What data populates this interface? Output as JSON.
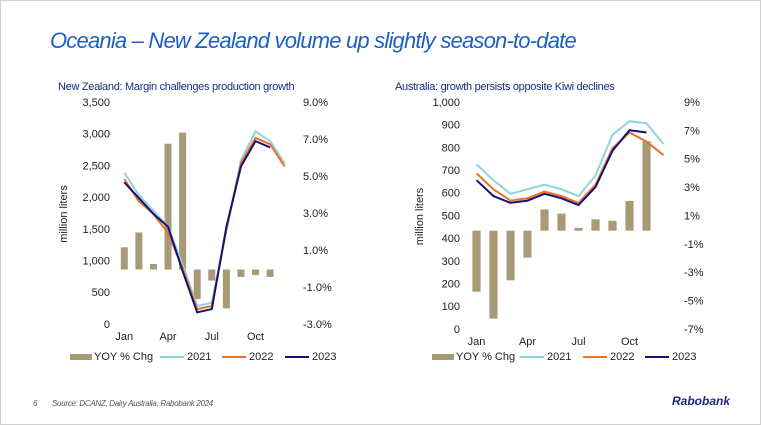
{
  "slide": {
    "title": "Oceania – New Zealand volume up slightly season-to-date",
    "page_number": "6",
    "source": "Source: DCANZ, Dairy Australia, Rabobank 2024",
    "logo": "Rabobank"
  },
  "chart_data": [
    {
      "type": "bar_line",
      "title": "New Zealand: Margin challenges production growth",
      "y_label": "million liters",
      "categories": [
        "Jan",
        null,
        null,
        "Apr",
        null,
        null,
        "Jul",
        null,
        null,
        "Oct",
        null,
        null
      ],
      "ylim": [
        0,
        3500
      ],
      "yticks": [
        0,
        500,
        {
          "value": 1000,
          "label": "1,000"
        },
        {
          "value": 1500,
          "label": "1,500"
        },
        {
          "value": 2000,
          "label": "2,000"
        },
        {
          "value": 2500,
          "label": "2,500"
        },
        {
          "value": 3000,
          "label": "3,000"
        },
        {
          "value": 3500,
          "label": "3,500"
        }
      ],
      "y2lim": [
        -3,
        9
      ],
      "y2ticks": [
        {
          "value": -3,
          "label": "-3.0%"
        },
        {
          "value": -1,
          "label": "-1.0%"
        },
        {
          "value": 1,
          "label": "1.0%"
        },
        {
          "value": 3,
          "label": "3.0%"
        },
        {
          "value": 5,
          "label": "5.0%"
        },
        {
          "value": 7,
          "label": "7.0%"
        },
        {
          "value": 9,
          "label": "9.0%"
        }
      ],
      "series": [
        {
          "name": "YOY % Chg",
          "kind": "bar",
          "axis": "y2",
          "color": "#a89a76",
          "values": [
            1.2,
            2.0,
            0.3,
            6.8,
            7.4,
            -1.6,
            -0.6,
            -2.1,
            -0.4,
            -0.3,
            -0.4,
            null
          ]
        },
        {
          "name": "2021",
          "kind": "line",
          "color": "#8fd3e0",
          "values": [
            2400,
            2050,
            1800,
            1550,
            950,
            300,
            350,
            1500,
            2600,
            3050,
            2900,
            2550
          ]
        },
        {
          "name": "2022",
          "kind": "line",
          "color": "#f07020",
          "values": [
            2300,
            1950,
            1750,
            1450,
            900,
            250,
            300,
            1500,
            2550,
            2950,
            2850,
            2500
          ]
        },
        {
          "name": "2023",
          "kind": "line",
          "color": "#10147a",
          "values": [
            2250,
            2000,
            1750,
            1550,
            850,
            200,
            250,
            1550,
            2500,
            2900,
            2800,
            null
          ]
        }
      ]
    },
    {
      "type": "bar_line",
      "title": "Australia: growth persists opposite Kiwi declines",
      "y_label": "million liters",
      "categories": [
        "Jan",
        null,
        null,
        "Apr",
        null,
        null,
        "Jul",
        null,
        null,
        "Oct",
        null,
        null
      ],
      "ylim": [
        0,
        1000
      ],
      "yticks": [
        0,
        100,
        200,
        300,
        400,
        500,
        600,
        700,
        800,
        900,
        {
          "value": 1000,
          "label": "1,000"
        }
      ],
      "y2lim": [
        -7,
        9
      ],
      "y2ticks": [
        {
          "value": -7,
          "label": "-7%"
        },
        {
          "value": -5,
          "label": "-5%"
        },
        {
          "value": -3,
          "label": "-3%"
        },
        {
          "value": -1,
          "label": "-1%"
        },
        {
          "value": 1,
          "label": "1%"
        },
        {
          "value": 3,
          "label": "3%"
        },
        {
          "value": 5,
          "label": "5%"
        },
        {
          "value": 7,
          "label": "7%"
        },
        {
          "value": 9,
          "label": "9%"
        }
      ],
      "series": [
        {
          "name": "YOY % Chg",
          "kind": "bar",
          "axis": "y2",
          "color": "#a89a76",
          "values": [
            -4.3,
            -6.2,
            -3.5,
            -1.9,
            1.5,
            1.2,
            0.2,
            0.8,
            0.7,
            2.1,
            6.3,
            null
          ]
        },
        {
          "name": "2021",
          "kind": "line",
          "color": "#8fd3e0",
          "values": [
            730,
            660,
            600,
            620,
            640,
            620,
            590,
            680,
            860,
            920,
            910,
            820
          ]
        },
        {
          "name": "2022",
          "kind": "line",
          "color": "#f07020",
          "values": [
            690,
            620,
            570,
            580,
            610,
            590,
            560,
            640,
            800,
            870,
            830,
            770
          ]
        },
        {
          "name": "2023",
          "kind": "line",
          "color": "#10147a",
          "values": [
            660,
            590,
            560,
            570,
            600,
            580,
            550,
            630,
            790,
            880,
            870,
            null
          ]
        }
      ]
    }
  ]
}
